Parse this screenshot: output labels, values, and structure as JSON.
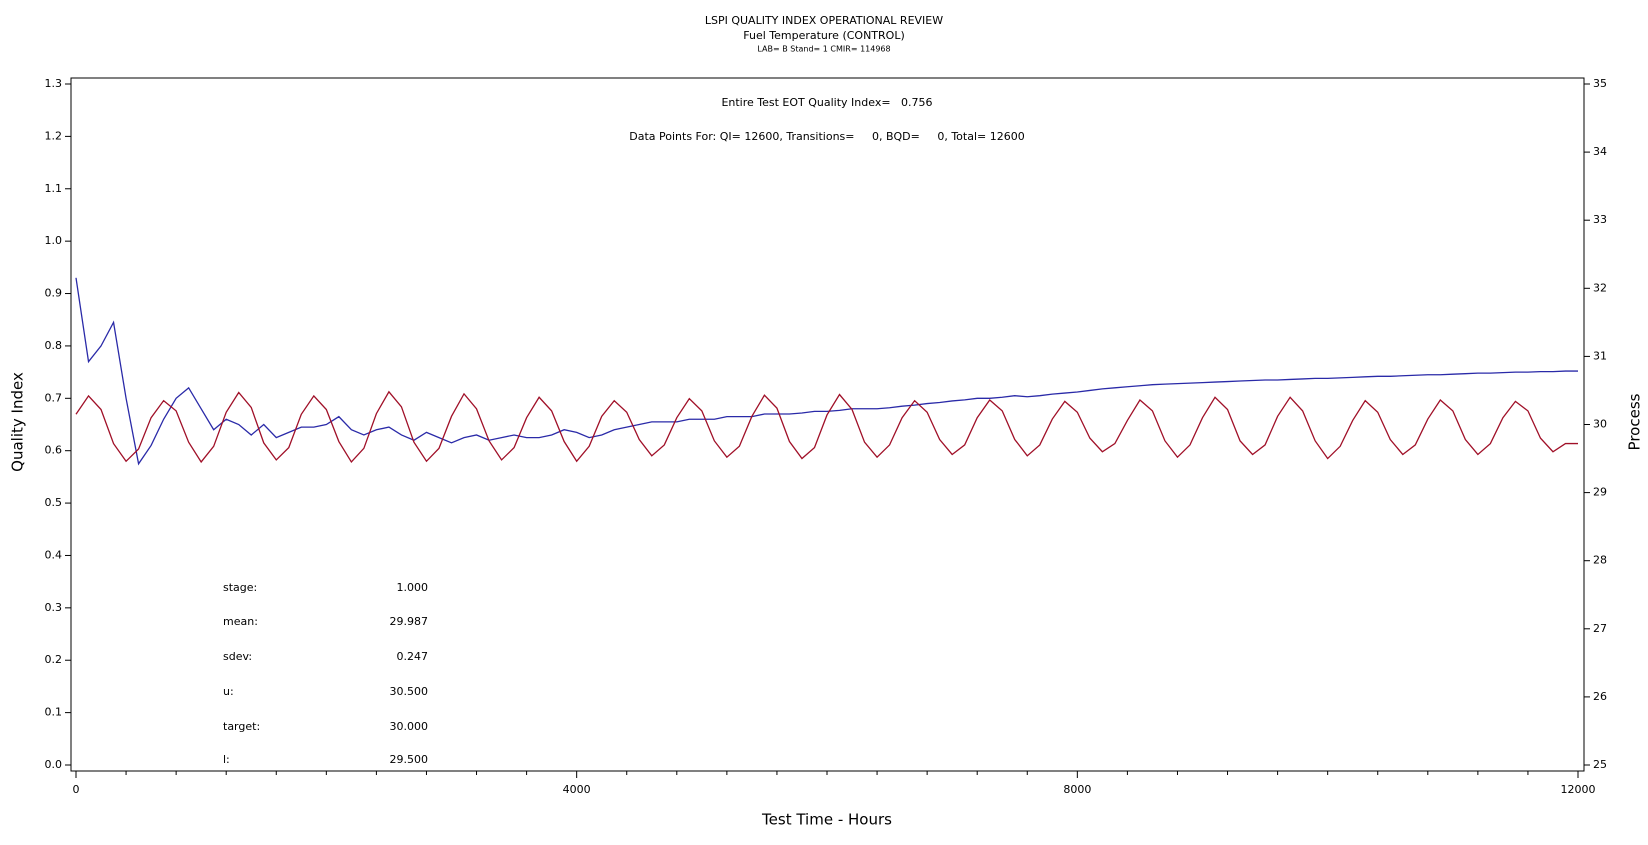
{
  "chart_data": {
    "type": "line",
    "title": "LSPI QUALITY INDEX OPERATIONAL REVIEW",
    "subtitle": "Fuel Temperature (CONTROL)",
    "subtitle2": "LAB= B Stand= 1 CMIR= 114968",
    "xlabel": "Test Time - Hours",
    "ylabel": "Quality Index",
    "y2label": "Process",
    "annotations": [
      "Entire Test EOT Quality Index=   0.756",
      "Data Points For: QI= 12600, Transitions=     0, BQD=     0, Total= 12600"
    ],
    "stats": [
      [
        "stage:",
        "1.000"
      ],
      [
        "mean:",
        "29.987"
      ],
      [
        "sdev:",
        "0.247"
      ],
      [
        "u:",
        "30.500"
      ],
      [
        "target:",
        "30.000"
      ],
      [
        "l:",
        "29.500"
      ]
    ],
    "xlim": [
      0,
      12000
    ],
    "xticks": [
      0,
      4000,
      8000,
      12000
    ],
    "xminorticks": [
      400,
      800,
      1200,
      1600,
      2000,
      2400,
      2800,
      3200,
      3600,
      4400,
      4800,
      5200,
      5600,
      6000,
      6400,
      6800,
      7200,
      7600,
      8400,
      8800,
      9200,
      9600,
      10000,
      10400,
      10800,
      11200,
      11600
    ],
    "ylim": [
      0,
      1.3
    ],
    "yticks": [
      {
        "value": 0,
        "label": "0.0"
      },
      0.1,
      0.2,
      0.3,
      0.4,
      0.5,
      0.6,
      0.7,
      0.8,
      0.9,
      {
        "value": 1,
        "label": "1.0"
      },
      1.1,
      1.2,
      1.3
    ],
    "y2lim": [
      25,
      35
    ],
    "y2ticks": [
      25,
      26,
      27,
      28,
      29,
      30,
      31,
      32,
      33,
      34,
      35
    ],
    "x": [
      0,
      100,
      200,
      300,
      400,
      500,
      600,
      700,
      800,
      900,
      1000,
      1100,
      1200,
      1300,
      1400,
      1500,
      1600,
      1700,
      1800,
      1900,
      2000,
      2100,
      2200,
      2300,
      2400,
      2500,
      2600,
      2700,
      2800,
      2900,
      3000,
      3100,
      3200,
      3300,
      3400,
      3500,
      3600,
      3700,
      3800,
      3900,
      4000,
      4100,
      4200,
      4300,
      4400,
      4500,
      4600,
      4700,
      4800,
      4900,
      5000,
      5100,
      5200,
      5300,
      5400,
      5500,
      5600,
      5700,
      5800,
      5900,
      6000,
      6100,
      6200,
      6300,
      6400,
      6500,
      6600,
      6700,
      6800,
      6900,
      7000,
      7100,
      7200,
      7300,
      7400,
      7500,
      7600,
      7700,
      7800,
      7900,
      8000,
      8100,
      8200,
      8300,
      8400,
      8500,
      8600,
      8700,
      8800,
      8900,
      9000,
      9100,
      9200,
      9300,
      9400,
      9500,
      9600,
      9700,
      9800,
      9900,
      10000,
      10100,
      10200,
      10300,
      10400,
      10500,
      10600,
      10700,
      10800,
      10900,
      11000,
      11100,
      11200,
      11300,
      11400,
      11500,
      11600,
      11700,
      11800,
      11900,
      12000
    ],
    "series": [
      {
        "color": "#2a2aa8",
        "values": [
          0.93,
          0.77,
          0.8,
          0.845,
          0.7,
          0.575,
          0.61,
          0.66,
          0.7,
          0.72,
          0.68,
          0.64,
          0.66,
          0.65,
          0.63,
          0.65,
          0.625,
          0.635,
          0.645,
          0.645,
          0.65,
          0.665,
          0.64,
          0.63,
          0.64,
          0.645,
          0.63,
          0.62,
          0.635,
          0.625,
          0.615,
          0.625,
          0.63,
          0.62,
          0.625,
          0.63,
          0.625,
          0.625,
          0.63,
          0.64,
          0.635,
          0.625,
          0.63,
          0.64,
          0.645,
          0.65,
          0.655,
          0.655,
          0.655,
          0.66,
          0.66,
          0.66,
          0.665,
          0.665,
          0.665,
          0.67,
          0.67,
          0.67,
          0.672,
          0.675,
          0.675,
          0.677,
          0.68,
          0.68,
          0.68,
          0.682,
          0.685,
          0.687,
          0.69,
          0.692,
          0.695,
          0.697,
          0.7,
          0.7,
          0.702,
          0.705,
          0.703,
          0.705,
          0.708,
          0.71,
          0.712,
          0.715,
          0.718,
          0.72,
          0.722,
          0.724,
          0.726,
          0.727,
          0.728,
          0.729,
          0.73,
          0.731,
          0.732,
          0.733,
          0.734,
          0.735,
          0.735,
          0.736,
          0.737,
          0.738,
          0.738,
          0.739,
          0.74,
          0.741,
          0.742,
          0.742,
          0.743,
          0.744,
          0.745,
          0.745,
          0.746,
          0.747,
          0.748,
          0.748,
          0.749,
          0.75,
          0.75,
          0.751,
          0.751,
          0.752,
          0.752
        ]
      },
      {
        "color": "#a01028",
        "axis": "y2",
        "values": [
          30.15,
          30.42,
          30.22,
          29.72,
          29.46,
          29.64,
          30.1,
          30.35,
          30.2,
          29.74,
          29.45,
          29.68,
          30.18,
          30.47,
          30.25,
          29.73,
          29.48,
          29.66,
          30.15,
          30.42,
          30.22,
          29.75,
          29.45,
          29.65,
          30.16,
          30.48,
          30.26,
          29.74,
          29.46,
          29.65,
          30.12,
          30.45,
          30.23,
          29.76,
          29.48,
          29.66,
          30.1,
          30.4,
          30.2,
          29.75,
          29.46,
          29.68,
          30.12,
          30.35,
          30.18,
          29.78,
          29.54,
          29.7,
          30.1,
          30.38,
          30.2,
          29.76,
          29.52,
          29.68,
          30.12,
          30.43,
          30.24,
          29.75,
          29.5,
          29.66,
          30.14,
          30.44,
          30.22,
          29.74,
          29.52,
          29.7,
          30.1,
          30.35,
          30.18,
          29.78,
          29.56,
          29.7,
          30.1,
          30.36,
          30.2,
          29.78,
          29.54,
          29.7,
          30.08,
          30.34,
          30.18,
          29.8,
          29.6,
          29.72,
          30.06,
          30.36,
          30.2,
          29.76,
          29.52,
          29.7,
          30.1,
          30.4,
          30.22,
          29.76,
          29.56,
          29.7,
          30.12,
          30.4,
          30.2,
          29.76,
          29.5,
          29.68,
          30.06,
          30.35,
          30.18,
          29.78,
          29.56,
          29.7,
          30.08,
          30.36,
          30.2,
          29.78,
          29.56,
          29.72,
          30.1,
          30.34,
          30.2,
          29.8,
          29.6,
          29.72,
          29.72
        ]
      }
    ]
  }
}
